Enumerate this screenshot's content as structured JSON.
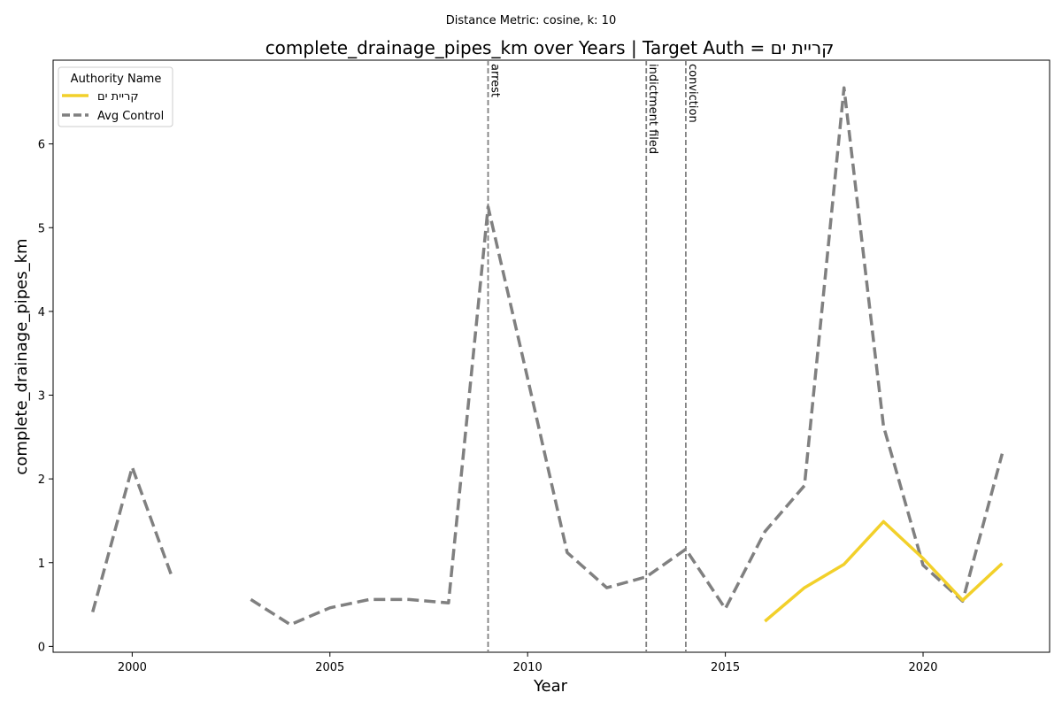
{
  "chart_data": {
    "type": "line",
    "subtitle": "Distance Metric: cosine, k: 10",
    "title": "complete_drainage_pipes_km over Years | Target Auth = קריית ים",
    "xlabel": "Year",
    "ylabel": "complete_drainage_pipes_km",
    "xlim": [
      1998,
      2023.2
    ],
    "ylim": [
      -0.07,
      7.0
    ],
    "xticks": [
      2000,
      2005,
      2010,
      2015,
      2020
    ],
    "yticks": [
      0,
      1,
      2,
      3,
      4,
      5,
      6
    ],
    "grid": false,
    "legend": {
      "title": "Authority Name",
      "placement": "top-left"
    },
    "series": [
      {
        "name": "קריית ים",
        "style": "solid",
        "color": "#f2d02a",
        "x": [
          2016,
          2017,
          2018,
          2019,
          2020,
          2021,
          2022
        ],
        "y": [
          0.3,
          0.7,
          0.98,
          1.49,
          1.05,
          0.55,
          0.99
        ]
      },
      {
        "name": "Avg Control",
        "style": "dashed",
        "color": "#808080",
        "x": [
          1999,
          2000,
          2001,
          2002,
          2003,
          2004,
          2005,
          2006,
          2007,
          2008,
          2009,
          2010,
          2011,
          2012,
          2013,
          2014,
          2015,
          2016,
          2017,
          2018,
          2019,
          2020,
          2021,
          2022
        ],
        "y": [
          0.41,
          2.14,
          0.84,
          null,
          0.56,
          0.26,
          0.46,
          0.56,
          0.56,
          0.52,
          5.25,
          3.2,
          1.12,
          0.7,
          0.83,
          1.16,
          0.45,
          1.37,
          1.92,
          6.67,
          2.63,
          0.97,
          0.54,
          2.3
        ]
      }
    ],
    "events": [
      {
        "label": "arrest",
        "x": 2009
      },
      {
        "label": "indictment filed",
        "x": 2013
      },
      {
        "label": "conviction",
        "x": 2014
      }
    ]
  }
}
